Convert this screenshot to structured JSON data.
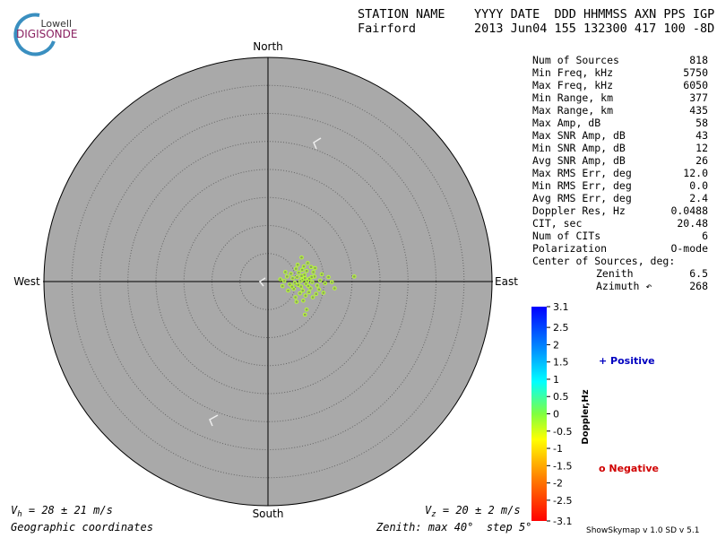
{
  "header": {
    "logo_top": "Lowell",
    "logo_bottom": "DIGISONDE",
    "columns": "STATION NAME    YYYY DATE  DDD HHMMSS AXN PPS IGP",
    "values": "Fairford        2013 Jun04 155 132300 417 100 -8D"
  },
  "stats": [
    [
      "Num of Sources",
      "818"
    ],
    [
      "Min Freq, kHz",
      "5750"
    ],
    [
      "Max Freq, kHz",
      "6050"
    ],
    [
      "Min Range, km",
      "377"
    ],
    [
      "Max Range, km",
      "435"
    ],
    [
      "Max Amp, dB",
      "58"
    ],
    [
      "Max SNR Amp, dB",
      "43"
    ],
    [
      "Min SNR Amp, dB",
      "12"
    ],
    [
      "Avg SNR Amp, dB",
      "26"
    ],
    [
      "Max RMS Err, deg",
      "12.0"
    ],
    [
      "Min RMS Err, deg",
      "0.0"
    ],
    [
      "Avg RMS Err, deg",
      "2.4"
    ],
    [
      "Doppler Res, Hz",
      "0.0488"
    ],
    [
      "CIT, sec",
      "20.48"
    ],
    [
      "Num of CITs",
      "6"
    ],
    [
      "Polarization",
      "O-mode"
    ]
  ],
  "center": {
    "title": "Center of Sources, deg:",
    "rows": [
      [
        "Zenith",
        "6.5"
      ],
      [
        "Azimuth ↶",
        "268"
      ]
    ]
  },
  "chart_data": {
    "type": "scatter",
    "directions": {
      "north": "North",
      "south": "South",
      "east": "East",
      "west": "West"
    },
    "color": "#b8ff30",
    "xlim": [
      -40,
      40
    ],
    "ylim": [
      -40,
      40
    ],
    "rticks": [
      5,
      10,
      15,
      20,
      25,
      30,
      35,
      40
    ],
    "x": [
      5.2,
      6.1,
      6.8,
      7.4,
      5.9,
      4.8,
      6.5,
      7.9,
      8.3,
      5.5,
      6.9,
      7.6,
      4.4,
      3.9,
      6.2,
      8.8,
      9.3,
      5.0,
      6.4,
      7.1,
      4.1,
      3.4,
      8.1,
      9.1,
      5.7,
      6.7,
      7.3,
      4.6,
      2.9,
      10.2,
      10.8,
      11.4,
      2.2,
      5.3,
      6.0,
      7.7,
      8.6,
      6.3,
      6.9,
      6.6,
      4.9,
      3.6,
      9.6,
      8.4,
      5.8,
      6.6,
      7.2,
      5.4,
      6.0,
      7.0,
      7.8,
      4.3,
      3.1,
      11.9,
      15.4,
      2.6,
      9.9,
      8.0,
      5.1,
      6.1
    ],
    "y": [
      0.8,
      0.3,
      -0.4,
      0.5,
      -0.9,
      -0.2,
      1.2,
      -0.1,
      0.9,
      1.6,
      1.9,
      -1.2,
      0.6,
      -0.5,
      -1.6,
      -0.7,
      0.2,
      2.3,
      2.7,
      3.3,
      1.4,
      0.9,
      1.7,
      -1.4,
      -2.1,
      -2.5,
      -1.9,
      -1.3,
      0.1,
      -0.3,
      0.8,
      -0.1,
      0.4,
      3.0,
      4.3,
      2.6,
      -2.2,
      -3.4,
      -5.0,
      -5.9,
      -2.8,
      -1.6,
      1.3,
      2.4,
      0.1,
      0.6,
      -0.8,
      -0.6,
      1.0,
      0.1,
      0.8,
      -0.9,
      1.7,
      -1.2,
      0.9,
      -0.8,
      -2.0,
      -2.8,
      -3.6,
      2.1
    ]
  },
  "colorbar": {
    "title": "Doppler,Hz",
    "ylim": [
      -3.1,
      3.1
    ],
    "ticks": [
      3.1,
      2.5,
      2,
      1.5,
      1,
      0.5,
      0,
      -0.5,
      -1.0,
      -1.5,
      -2.0,
      -2.5,
      -3.1
    ],
    "positive": "+ Positive",
    "negative": "o Negative"
  },
  "footer": {
    "vh_v": "V",
    "vh_sub": "h",
    "vh_text": " = 28 ± 21 m/s",
    "vz_v": "V",
    "vz_sub": "z",
    "vz_text": " = 20 ± 2 m/s",
    "coords": "Geographic coordinates",
    "zenith": "Zenith: max 40°  step 5°",
    "version": "ShowSkymap v 1.0  SD v 5.1"
  }
}
